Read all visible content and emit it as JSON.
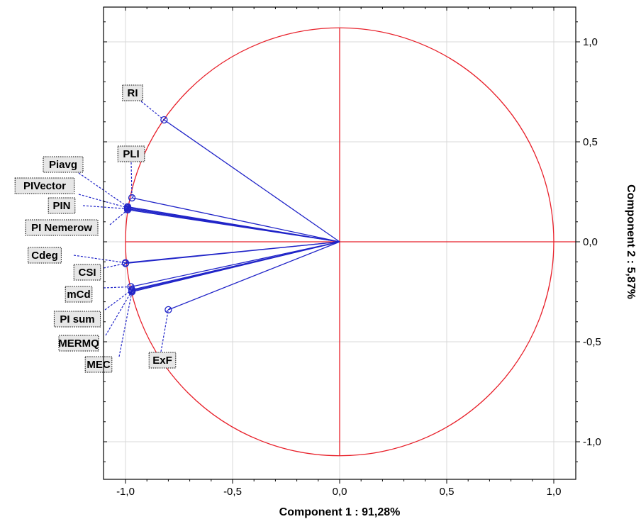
{
  "chart_data": {
    "type": "scatter",
    "title": "",
    "xlabel": "Component 1 : 91,28%",
    "ylabel": "Component 2 :  5,87%",
    "xlim": [
      -1.1,
      1.1
    ],
    "ylim": [
      -1.1,
      1.15
    ],
    "x_ticks": [
      "-1,0",
      "-0,5",
      "0,0",
      "0,5",
      "1,0"
    ],
    "y_ticks": [
      "1,0",
      "0,5",
      "0,0",
      "-0,5",
      "-1,0"
    ],
    "grid": true,
    "unit_circle": true,
    "colors": {
      "axes": "#e8202a",
      "vectors": "#2024c8",
      "grid": "#d9d9d9"
    },
    "points": [
      {
        "name": "RI",
        "x": -0.82,
        "y": 0.61
      },
      {
        "name": "PLI",
        "x": -0.97,
        "y": 0.22
      },
      {
        "name": "Piavg",
        "x": -0.99,
        "y": 0.175
      },
      {
        "name": "PIVector",
        "x": -0.99,
        "y": 0.17
      },
      {
        "name": "PIN",
        "x": -0.99,
        "y": 0.165
      },
      {
        "name": "PI Nemerow",
        "x": -0.99,
        "y": 0.16
      },
      {
        "name": "Cdeg",
        "x": -1.0,
        "y": -0.105
      },
      {
        "name": "CSI",
        "x": -1.0,
        "y": -0.108
      },
      {
        "name": "mCd",
        "x": -0.975,
        "y": -0.225
      },
      {
        "name": "PI sum",
        "x": -0.97,
        "y": -0.24
      },
      {
        "name": "MERMQ",
        "x": -0.97,
        "y": -0.245
      },
      {
        "name": "MEC",
        "x": -0.97,
        "y": -0.25
      },
      {
        "name": "ExF",
        "x": -0.8,
        "y": -0.34
      }
    ]
  }
}
